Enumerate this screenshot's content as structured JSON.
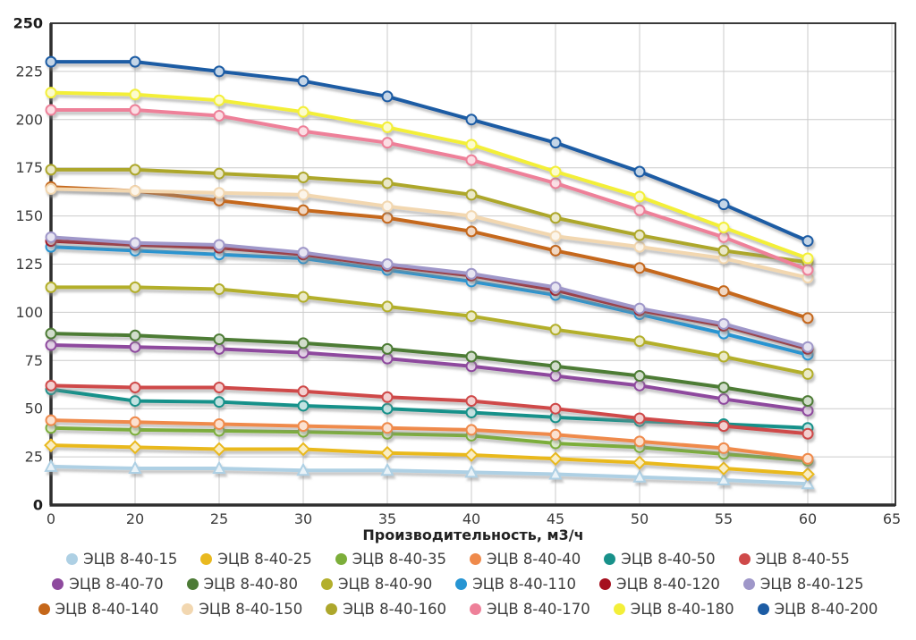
{
  "chart_data": {
    "type": "line",
    "title": "",
    "xlabel": "Производительность, м3/ч",
    "ylabel": "",
    "ylim": [
      0,
      250
    ],
    "grid": true,
    "legend_position": "bottom",
    "x_categories": [
      0,
      20,
      25,
      30,
      35,
      40,
      45,
      50,
      55,
      60
    ],
    "xtick_labels": [
      "0",
      "20",
      "25",
      "30",
      "35",
      "40",
      "45",
      "50",
      "55",
      "60",
      "65"
    ],
    "ytick_labels": [
      0,
      25,
      50,
      75,
      100,
      125,
      150,
      175,
      200,
      225,
      250
    ],
    "series": [
      {
        "name": "ЭЦВ 8-40-15",
        "color": "#aed0e4",
        "marker": "triangle",
        "values": [
          20,
          19,
          19,
          18,
          18,
          17,
          16,
          14.5,
          13,
          11
        ]
      },
      {
        "name": "ЭЦВ 8-40-25",
        "color": "#e9b91f",
        "marker": "diamond",
        "values": [
          31,
          30,
          29,
          29,
          27,
          26,
          24,
          22,
          19,
          16
        ]
      },
      {
        "name": "ЭЦВ 8-40-35",
        "color": "#7cae3a",
        "marker": "circle",
        "values": [
          40,
          39,
          38.5,
          38,
          37,
          36,
          32,
          30,
          26.5,
          23
        ]
      },
      {
        "name": "ЭЦВ 8-40-40",
        "color": "#ef8a4b",
        "marker": "circle",
        "values": [
          44,
          43,
          42,
          41,
          40,
          39,
          36.5,
          33,
          29.5,
          24
        ]
      },
      {
        "name": "ЭЦВ 8-40-50",
        "color": "#18918a",
        "marker": "circle",
        "values": [
          60,
          54,
          53.5,
          51.5,
          50,
          48,
          45.5,
          43.5,
          42,
          40
        ]
      },
      {
        "name": "ЭЦВ 8-40-55",
        "color": "#cf4a4a",
        "marker": "circle",
        "values": [
          62,
          61,
          61,
          59,
          56,
          54,
          50,
          45,
          41,
          37
        ]
      },
      {
        "name": "ЭЦВ 8-40-70",
        "color": "#8e4a9e",
        "marker": "circle",
        "values": [
          83,
          82,
          81,
          79,
          76,
          72,
          67,
          62,
          55,
          49
        ]
      },
      {
        "name": "ЭЦВ 8-40-80",
        "color": "#4d7b36",
        "marker": "circle",
        "values": [
          89,
          88,
          86,
          84,
          81,
          77,
          72,
          67,
          61,
          54
        ]
      },
      {
        "name": "ЭЦВ 8-40-90",
        "color": "#b3af2c",
        "marker": "circle",
        "values": [
          113,
          113,
          112,
          108,
          103,
          98,
          91,
          85,
          77,
          68
        ]
      },
      {
        "name": "ЭЦВ 8-40-110",
        "color": "#2795d3",
        "marker": "circle",
        "values": [
          134,
          132,
          130,
          128,
          122,
          116,
          109,
          99,
          89,
          78
        ]
      },
      {
        "name": "ЭЦВ 8-40-120",
        "color": "#a5101f",
        "marker": "circle",
        "values": [
          137,
          135,
          133.5,
          130,
          124,
          119,
          111.5,
          101,
          93,
          81
        ]
      },
      {
        "name": "ЭЦВ 8-40-125",
        "color": "#9f97c9",
        "marker": "circle",
        "values": [
          139,
          136,
          135,
          131,
          125,
          120,
          113,
          102,
          94,
          82
        ]
      },
      {
        "name": "ЭЦВ 8-40-140",
        "color": "#c5671a",
        "marker": "circle",
        "values": [
          165,
          163,
          158,
          153,
          149,
          142,
          132,
          123,
          111,
          97
        ]
      },
      {
        "name": "ЭЦВ 8-40-150",
        "color": "#f2d7b0",
        "marker": "circle",
        "values": [
          164,
          163,
          162,
          161,
          155,
          150,
          139.5,
          134,
          128,
          118
        ]
      },
      {
        "name": "ЭЦВ 8-40-160",
        "color": "#ada72c",
        "marker": "circle",
        "values": [
          174,
          174,
          172,
          170,
          167,
          161,
          149,
          140,
          132,
          126
        ]
      },
      {
        "name": "ЭЦВ 8-40-170",
        "color": "#ee8099",
        "marker": "circle",
        "values": [
          205,
          205,
          202,
          194,
          188,
          179,
          167,
          153,
          139,
          122
        ]
      },
      {
        "name": "ЭЦВ 8-40-180",
        "color": "#f3ef39",
        "marker": "circle",
        "values": [
          214,
          213,
          210,
          204,
          196,
          187,
          173,
          160,
          144,
          128
        ]
      },
      {
        "name": "ЭЦВ 8-40-200",
        "color": "#1c5ca4",
        "marker": "circle",
        "values": [
          230,
          230,
          225,
          220,
          212,
          200,
          188,
          173,
          156,
          137
        ]
      }
    ]
  }
}
